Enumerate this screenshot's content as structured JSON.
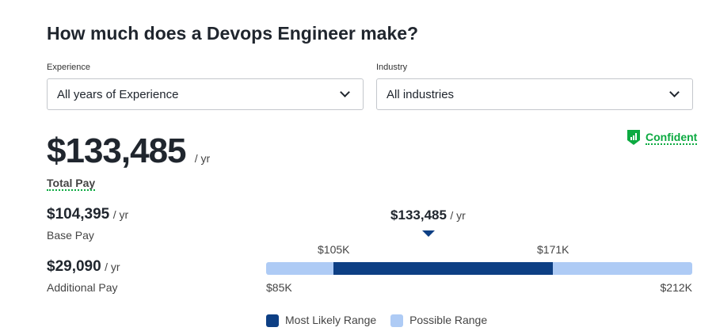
{
  "title": "How much does a Devops Engineer make?",
  "filters": {
    "experience": {
      "label": "Experience",
      "value": "All years of Experience"
    },
    "industry": {
      "label": "Industry",
      "value": "All industries"
    }
  },
  "total": {
    "amount": "$133,485",
    "unit": "/ yr",
    "label": "Total Pay"
  },
  "confidence": {
    "label": "Confident",
    "color": "#0caa41"
  },
  "base": {
    "amount": "$104,395",
    "unit": "/ yr",
    "label": "Base Pay"
  },
  "additional": {
    "amount": "$29,090",
    "unit": "/ yr",
    "label": "Additional Pay"
  },
  "range": {
    "marker": "$133,485",
    "marker_unit": "/ yr",
    "min": "$85K",
    "low": "$105K",
    "high": "$171K",
    "max": "$212K",
    "min_value": 85000,
    "low_value": 105000,
    "high_value": 171000,
    "max_value": 212000,
    "marker_value": 133485,
    "colors": {
      "likely": "#0d3f84",
      "possible": "#aecbf5"
    }
  },
  "legend": {
    "likely": "Most Likely Range",
    "possible": "Possible Range"
  }
}
